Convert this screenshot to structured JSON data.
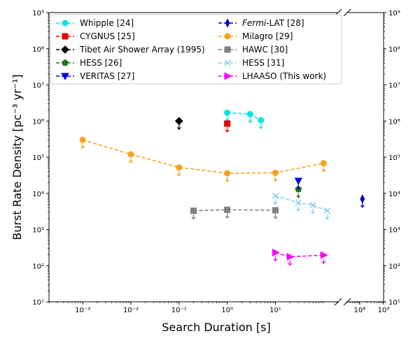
{
  "chart_data": {
    "type": "scatter",
    "title": "",
    "xlabel": "Search Duration [s]",
    "ylabel": "Burst Rate Density [pc⁻³ yr⁻¹]",
    "x_scale": "log",
    "y_scale": "log",
    "x_ranges": [
      [
        0.0002,
        200
      ],
      [
        30000000,
        1000000000
      ]
    ],
    "ylim": [
      10,
      1000000000
    ],
    "x_tick_labels_left": [
      "10⁻³",
      "10⁻²",
      "10⁻¹",
      "10⁰",
      "10¹"
    ],
    "x_tick_labels_right": [
      "10⁸",
      "10⁹"
    ],
    "y_tick_labels": [
      "10¹",
      "10²",
      "10³",
      "10⁴",
      "10⁵",
      "10⁶",
      "10⁷",
      "10⁸",
      "10⁹"
    ],
    "grid": false,
    "legend_position": "top",
    "upper_limits": true,
    "series": [
      {
        "name": "Whipple [24]",
        "color": "#00e5e5",
        "marker": "circle",
        "x": [
          1,
          3,
          5
        ],
        "y": [
          1700000,
          1550000,
          1050000
        ]
      },
      {
        "name": "CYGNUS [25]",
        "color": "#e60000",
        "marker": "square",
        "x": [
          1
        ],
        "y": [
          850000
        ]
      },
      {
        "name": "Tibet Air Shower Array (1995)",
        "color": "#000000",
        "marker": "diamond",
        "x": [
          0.1
        ],
        "y": [
          1000000
        ]
      },
      {
        "name": "HESS [26]",
        "color": "#1a7a1a",
        "marker": "pentagon",
        "x": [
          30
        ],
        "y": [
          13000
        ]
      },
      {
        "name": "VERITAS [27]",
        "color": "#0000dd",
        "marker": "triangle-down",
        "x": [
          30
        ],
        "y": [
          22000
        ]
      },
      {
        "name": "Fermi-LAT [28]",
        "color": "#0000c8",
        "marker": "thin-diamond",
        "x": [
          130000000
        ],
        "y": [
          7000
        ]
      },
      {
        "name": "Milagro [29]",
        "color": "#f5a21b",
        "marker": "circle",
        "x": [
          0.001,
          0.01,
          0.1,
          1,
          10,
          100
        ],
        "y": [
          300000,
          120000,
          52000,
          36000,
          37000,
          68000
        ]
      },
      {
        "name": "HAWC [30]",
        "color": "#808080",
        "marker": "square",
        "x": [
          0.2,
          1,
          10
        ],
        "y": [
          3300,
          3500,
          3400
        ]
      },
      {
        "name": "HESS [31]",
        "color": "#87ceeb",
        "marker": "x",
        "x": [
          10,
          30,
          60,
          120
        ],
        "y": [
          8500,
          5500,
          4700,
          3300
        ]
      },
      {
        "name": "LHAASO (This work)",
        "color": "#ff00ff",
        "marker": "triangle-right",
        "x": [
          10,
          20,
          100
        ],
        "y": [
          230,
          175,
          195
        ]
      }
    ],
    "legend_labels": {
      "fermi_italic": "Fermi",
      "fermi_rest": "-LAT [28]"
    }
  }
}
